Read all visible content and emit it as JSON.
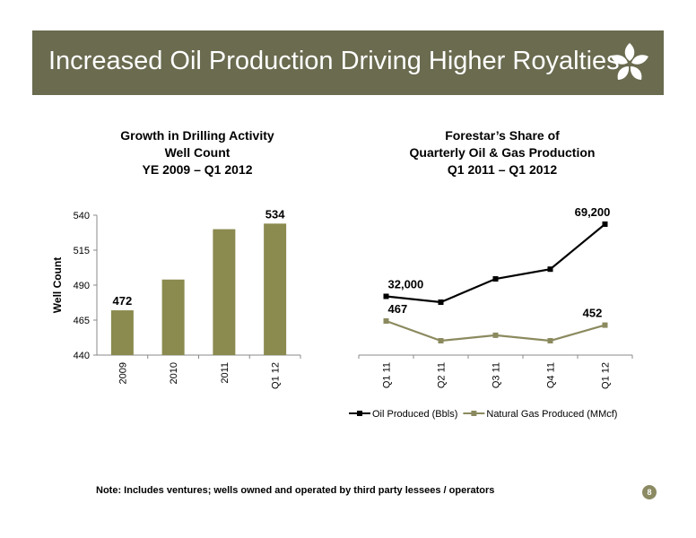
{
  "header": {
    "title": "Increased Oil Production Driving Higher Royalties",
    "bg_color": "#6a6b4f",
    "logo_icon": "star-leaf-logo-icon"
  },
  "footer": {
    "note": "Note: Includes ventures; wells owned and operated by third party lessees / operators",
    "page_number": "8"
  },
  "chart_data": [
    {
      "type": "bar",
      "title_lines": [
        "Growth in Drilling Activity",
        "Well Count",
        "YE 2009 – Q1 2012"
      ],
      "ylabel": "Well Count",
      "xlabel": "",
      "categories": [
        "2009",
        "2010",
        "2011",
        "Q1 12"
      ],
      "values": [
        472,
        494,
        530,
        534
      ],
      "data_labels": [
        "472",
        "",
        "",
        "534"
      ],
      "ylim": [
        440,
        540
      ],
      "yticks": [
        440,
        465,
        490,
        515,
        540
      ],
      "color": "#8b8a4f",
      "grid": false
    },
    {
      "type": "line",
      "title_lines": [
        "Forestar’s Share of",
        "Quarterly Oil & Gas Production",
        "Q1 2011 – Q1 2012"
      ],
      "categories": [
        "Q1 11",
        "Q2 11",
        "Q3 11",
        "Q4 11",
        "Q1 12"
      ],
      "series": [
        {
          "name": "Oil Produced (Bbls)",
          "values": [
            32000,
            29000,
            41000,
            46000,
            69200
          ],
          "color": "#000000",
          "data_labels": [
            "32,000",
            "",
            "",
            "",
            "69,200"
          ]
        },
        {
          "name": "Natural Gas Produced (MMcf)",
          "values": [
            467,
            395,
            415,
            395,
            452
          ],
          "color": "#8b8a5f",
          "data_labels": [
            "467",
            "",
            "",
            "",
            "452"
          ]
        }
      ],
      "legend": "bottom",
      "grid": false
    }
  ]
}
